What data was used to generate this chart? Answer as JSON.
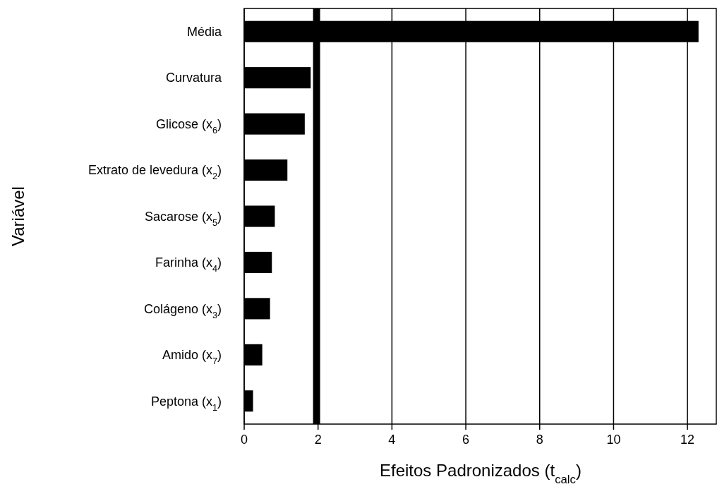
{
  "chart_data": {
    "type": "bar",
    "orientation": "horizontal",
    "xlabel": "Efeitos Padronizados (t$_{calc}$)",
    "ylabel": "Variável",
    "categories": [
      "Média",
      "Curvatura",
      "Glicose (x$_{6}$)",
      "Extrato de levedura (x$_{2}$)",
      "Sacarose (x$_{5}$)",
      "Farinha (x$_{4}$)",
      "Colágeno (x$_{3}$)",
      "Amido (x$_{7}$)",
      "Peptona (x$_{1}$)"
    ],
    "values": [
      12.3,
      1.8,
      1.64,
      1.17,
      0.83,
      0.75,
      0.7,
      0.49,
      0.24
    ],
    "color": "#000000",
    "xlim": [
      0,
      12.8
    ],
    "xticks": [
      0,
      2,
      4,
      6,
      8,
      10,
      12
    ],
    "grid": "x",
    "ref_lines": [
      {
        "axis": "x",
        "value": 1.96,
        "color": "#000000"
      }
    ]
  }
}
